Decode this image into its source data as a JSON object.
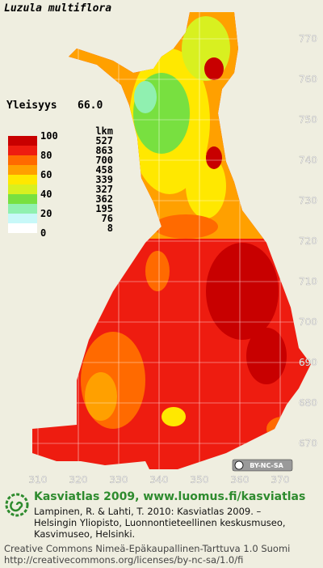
{
  "title": "Luzula multiflora",
  "frequency": {
    "label": "Yleisyys",
    "value": "66.0"
  },
  "legend": {
    "header": "lkm",
    "scale_labels": [
      100,
      80,
      60,
      40,
      20,
      0
    ],
    "classes": [
      {
        "color": "#c80000",
        "count": 527
      },
      {
        "color": "#ee1c10",
        "count": 863
      },
      {
        "color": "#ff6a00",
        "count": 700
      },
      {
        "color": "#ffa000",
        "count": 458
      },
      {
        "color": "#ffe800",
        "count": 339
      },
      {
        "color": "#d8f020",
        "count": 327
      },
      {
        "color": "#78e040",
        "count": 362
      },
      {
        "color": "#90f0b0",
        "count": 195
      },
      {
        "color": "#c8f8f8",
        "count": 76
      },
      {
        "color": "#ffffff",
        "count": 8
      }
    ]
  },
  "y_grid_labels": [
    770,
    760,
    750,
    740,
    730,
    720,
    710,
    700,
    690,
    680,
    670
  ],
  "x_grid_labels": [
    310,
    320,
    330,
    340,
    350,
    360,
    370
  ],
  "license_badge": "BY-NC-SA",
  "footer": {
    "heading": "Kasviatlas 2009, www.luomus.fi/kasviatlas",
    "citation": [
      "Lampinen, R. & Lahti, T. 2010: Kasviatlas 2009. –",
      "Helsingin Yliopisto, Luonnontieteellinen keskusmuseo,",
      "Kasvimuseo, Helsinki."
    ],
    "license": [
      "Creative Commons Nimeä-Epäkaupallinen-Tarttuva 1.0 Suomi",
      "http://creativecommons.org/licenses/by-nc-sa/1.0/fi"
    ]
  }
}
